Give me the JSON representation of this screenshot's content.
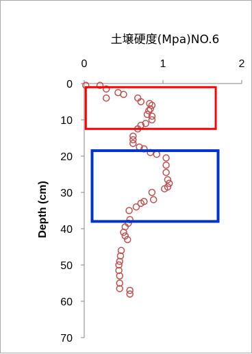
{
  "chart_data": {
    "type": "scatter",
    "title": "土壌硬度(Mpa)NO.6",
    "xlabel": "",
    "ylabel": "Depth (cm)",
    "xlim": [
      0,
      2
    ],
    "ylim": [
      0,
      70
    ],
    "y_inverted": true,
    "x_axis_position": "top",
    "x_ticks": [
      0,
      1,
      2
    ],
    "y_ticks": [
      0,
      10,
      20,
      30,
      40,
      50,
      60,
      70
    ],
    "grid": false,
    "legend": "none",
    "marker": "hollow-circle",
    "marker_color": "#c0504d",
    "points": [
      {
        "x": 0.02,
        "y": 0.5
      },
      {
        "x": 0.2,
        "y": 0.5
      },
      {
        "x": 0.28,
        "y": 1.5
      },
      {
        "x": 0.43,
        "y": 2.5
      },
      {
        "x": 0.5,
        "y": 3.0
      },
      {
        "x": 0.28,
        "y": 4.0
      },
      {
        "x": 0.68,
        "y": 4.0
      },
      {
        "x": 0.72,
        "y": 5.0
      },
      {
        "x": 0.83,
        "y": 5.5
      },
      {
        "x": 0.86,
        "y": 6.0
      },
      {
        "x": 0.84,
        "y": 7.0
      },
      {
        "x": 0.82,
        "y": 7.5
      },
      {
        "x": 0.8,
        "y": 8.5
      },
      {
        "x": 0.86,
        "y": 9.0
      },
      {
        "x": 0.86,
        "y": 10.0
      },
      {
        "x": 0.78,
        "y": 11.0
      },
      {
        "x": 0.72,
        "y": 11.5
      },
      {
        "x": 0.68,
        "y": 12.5
      },
      {
        "x": 0.62,
        "y": 14.5
      },
      {
        "x": 0.62,
        "y": 15.5
      },
      {
        "x": 0.62,
        "y": 16.5
      },
      {
        "x": 0.7,
        "y": 17.5
      },
      {
        "x": 0.76,
        "y": 18.0
      },
      {
        "x": 0.84,
        "y": 19.0
      },
      {
        "x": 0.92,
        "y": 19.5
      },
      {
        "x": 1.04,
        "y": 20.5
      },
      {
        "x": 1.04,
        "y": 22.5
      },
      {
        "x": 1.04,
        "y": 24.5
      },
      {
        "x": 1.06,
        "y": 26.5
      },
      {
        "x": 1.08,
        "y": 27.5
      },
      {
        "x": 1.06,
        "y": 28.5
      },
      {
        "x": 1.02,
        "y": 29.0
      },
      {
        "x": 0.86,
        "y": 30.0
      },
      {
        "x": 0.88,
        "y": 32.0
      },
      {
        "x": 0.76,
        "y": 32.5
      },
      {
        "x": 0.72,
        "y": 33.0
      },
      {
        "x": 0.66,
        "y": 34.0
      },
      {
        "x": 0.57,
        "y": 35.0
      },
      {
        "x": 0.58,
        "y": 37.5
      },
      {
        "x": 0.56,
        "y": 38.5
      },
      {
        "x": 0.52,
        "y": 39.5
      },
      {
        "x": 0.5,
        "y": 41.0
      },
      {
        "x": 0.52,
        "y": 42.0
      },
      {
        "x": 0.55,
        "y": 43.0
      },
      {
        "x": 0.47,
        "y": 46.0
      },
      {
        "x": 0.46,
        "y": 47.5
      },
      {
        "x": 0.45,
        "y": 49.0
      },
      {
        "x": 0.44,
        "y": 50.0
      },
      {
        "x": 0.44,
        "y": 51.5
      },
      {
        "x": 0.45,
        "y": 53.0
      },
      {
        "x": 0.45,
        "y": 55.0
      },
      {
        "x": 0.45,
        "y": 56.5
      },
      {
        "x": 0.58,
        "y": 57.0
      },
      {
        "x": 0.58,
        "y": 58.0
      }
    ],
    "annotations": [
      {
        "type": "rectangle",
        "color": "#ff0000",
        "x0": 0.02,
        "x1": 1.67,
        "y0": 1.0,
        "y1": 12.5
      },
      {
        "type": "rectangle",
        "color": "#0033cc",
        "x0": 0.1,
        "x1": 1.7,
        "y0": 18.5,
        "y1": 38.0
      }
    ]
  }
}
